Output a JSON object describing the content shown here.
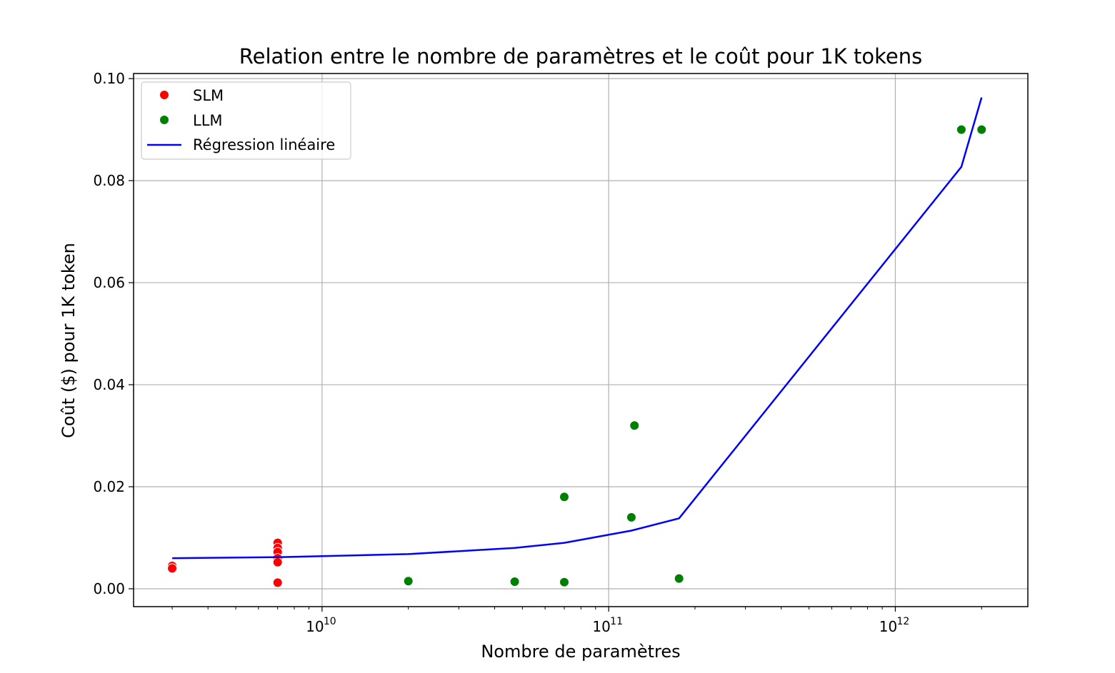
{
  "chart_data": {
    "type": "scatter",
    "title": "Relation entre le nombre de paramètres et le coût pour 1K tokens",
    "xlabel": "Nombre de paramètres",
    "ylabel": "Coût ($) pour 1K token",
    "xscale": "log",
    "xlim": [
      2200000000.0,
      2900000000000.0
    ],
    "ylim": [
      -0.0035,
      0.101
    ],
    "yticks": [
      0.0,
      0.02,
      0.04,
      0.06,
      0.08,
      0.1
    ],
    "ytick_labels": [
      "0.00",
      "0.02",
      "0.04",
      "0.06",
      "0.08",
      "0.10"
    ],
    "xticks": [
      10000000000.0,
      100000000000.0,
      1000000000000.0
    ],
    "xtick_labels": [
      {
        "base": "10",
        "exp": "10"
      },
      {
        "base": "10",
        "exp": "11"
      },
      {
        "base": "10",
        "exp": "12"
      }
    ],
    "grid": true,
    "legend_position": "top-left",
    "series": [
      {
        "name": "SLM",
        "kind": "scatter",
        "color": "#ff0000",
        "points": [
          {
            "x": 3000000000.0,
            "y": 0.0045
          },
          {
            "x": 3000000000.0,
            "y": 0.004
          },
          {
            "x": 7000000000.0,
            "y": 0.009
          },
          {
            "x": 7000000000.0,
            "y": 0.008
          },
          {
            "x": 7000000000.0,
            "y": 0.0072
          },
          {
            "x": 7000000000.0,
            "y": 0.006
          },
          {
            "x": 7000000000.0,
            "y": 0.0052
          },
          {
            "x": 7000000000.0,
            "y": 0.0012
          }
        ]
      },
      {
        "name": "LLM",
        "kind": "scatter",
        "color": "#008000",
        "points": [
          {
            "x": 20000000000.0,
            "y": 0.0015
          },
          {
            "x": 47000000000.0,
            "y": 0.0014
          },
          {
            "x": 70000000000.0,
            "y": 0.0013
          },
          {
            "x": 70000000000.0,
            "y": 0.018
          },
          {
            "x": 120000000000.0,
            "y": 0.014
          },
          {
            "x": 123000000000.0,
            "y": 0.032
          },
          {
            "x": 176000000000.0,
            "y": 0.002
          },
          {
            "x": 1700000000000.0,
            "y": 0.09
          },
          {
            "x": 2000000000000.0,
            "y": 0.09
          }
        ]
      },
      {
        "name": "Régression linéaire",
        "kind": "line",
        "color": "#0000ff",
        "points": [
          {
            "x": 3000000000.0,
            "y": 0.006
          },
          {
            "x": 7000000000.0,
            "y": 0.0062
          },
          {
            "x": 20000000000.0,
            "y": 0.0068
          },
          {
            "x": 47000000000.0,
            "y": 0.008
          },
          {
            "x": 70000000000.0,
            "y": 0.009
          },
          {
            "x": 120000000000.0,
            "y": 0.0114
          },
          {
            "x": 176000000000.0,
            "y": 0.0138
          },
          {
            "x": 1700000000000.0,
            "y": 0.0827
          },
          {
            "x": 2000000000000.0,
            "y": 0.0963
          }
        ]
      }
    ]
  }
}
